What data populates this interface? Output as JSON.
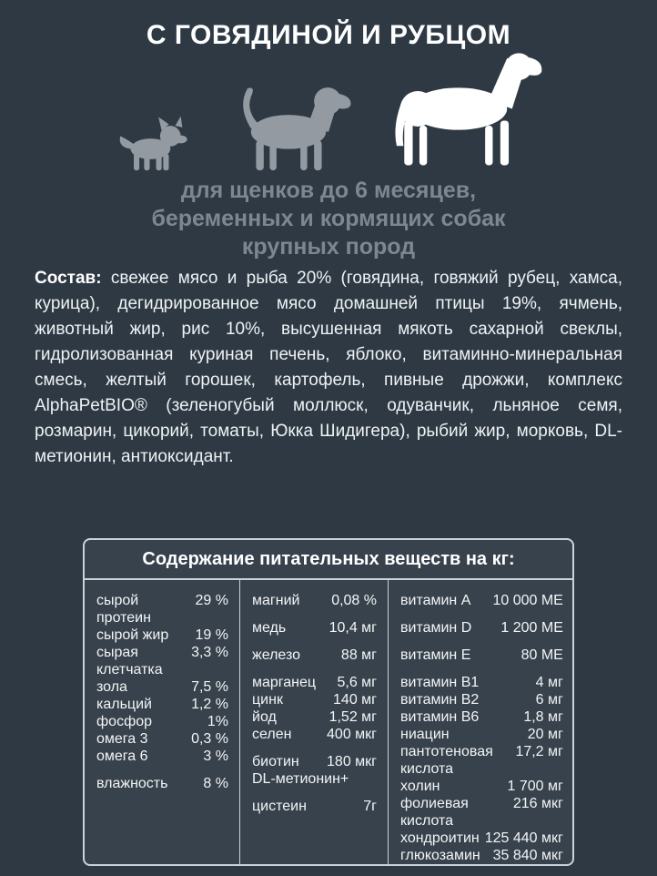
{
  "colors": {
    "background": "#2e3944",
    "panel_background": "#38424c",
    "border": "#ccd3d8",
    "text_primary": "#ffffff",
    "text_body": "#eef2f4",
    "text_muted": "#7d8790",
    "dog_gray": "#939aa1",
    "dog_white": "#ffffff"
  },
  "header": {
    "title": "С ГОВЯДИНОЙ И РУБЦОМ",
    "subtitle": "для щенков до 6 месяцев,\nбеременных и кормящих собак\nкрупных пород",
    "size_icons": [
      "small-dog",
      "medium-dog",
      "large-dog-highlighted"
    ]
  },
  "composition": {
    "label": "Состав:",
    "text": "свежее мясо и рыба 20% (говядина, говяжий рубец, хамса, курица), дегидрированное мясо домашней птицы 19%, ячмень, животный жир, рис 10%, высушенная мякоть сахарной свеклы, гидролизованная куриная печень, яблоко, витаминно-минеральная смесь, желтый горошек, картофель, пивные дрожжи, комплекс AlphaPetBIO® (зеленогубый моллюск, одуванчик, льняное семя, розмарин, цикорий, томаты, Юкка Шидигера), рыбий жир, морковь, DL-метионин, антиоксидант."
  },
  "table": {
    "title": "Содержание питательных веществ на кг:",
    "columns": [
      {
        "rows": [
          {
            "l": "сырой протеин",
            "v": "29 %"
          },
          {
            "l": "сырой жир",
            "v": "19 %"
          },
          {
            "l": "сырая клетчатка",
            "v": "3,3 %"
          },
          {
            "l": "зола",
            "v": "7,5 %"
          },
          {
            "l": "кальций",
            "v": "1,2 %"
          },
          {
            "l": "фосфор",
            "v": "1%"
          },
          {
            "l": "омега 3",
            "v": "0,3 %"
          },
          {
            "l": "омега 6",
            "v": "3 %"
          },
          {
            "l": "влажность",
            "v": "8 %",
            "gap": true
          }
        ]
      },
      {
        "rows": [
          {
            "l": "магний",
            "v": "0,08 %"
          },
          {
            "l": "медь",
            "v": "10,4 мг",
            "gap": true
          },
          {
            "l": "железо",
            "v": "88 мг",
            "gap": true
          },
          {
            "l": "марганец",
            "v": "5,6 мг",
            "gap": true
          },
          {
            "l": "цинк",
            "v": "140 мг"
          },
          {
            "l": "йод",
            "v": "1,52 мг"
          },
          {
            "l": "селен",
            "v": "400 мкг"
          },
          {
            "l": "биотин",
            "v": "180 мкг",
            "gap": true
          },
          {
            "l": "DL-метионин+",
            "v": ""
          },
          {
            "l": "цистеин",
            "v": "7г",
            "gap": true
          }
        ]
      },
      {
        "rows": [
          {
            "l": "витамин A",
            "v": "10 000 МЕ"
          },
          {
            "l": "витамин D",
            "v": "1 200 МЕ",
            "gap": true
          },
          {
            "l": "витамин E",
            "v": "80 МЕ",
            "gap": true
          },
          {
            "l": "витамин B1",
            "v": "4 мг",
            "gap": true
          },
          {
            "l": "витамин B2",
            "v": "6 мг"
          },
          {
            "l": "витамин B6",
            "v": "1,8 мг"
          },
          {
            "l": "ниацин",
            "v": "20 мг"
          },
          {
            "l": "пантотеновая кислота",
            "v": "17,2 мг"
          },
          {
            "l": "холин",
            "v": "1 700 мг"
          },
          {
            "l": "фолиевая кислота",
            "v": "216 мкг"
          },
          {
            "l": "хондроитин",
            "v": "125 440 мкг"
          },
          {
            "l": "глюкозамин",
            "v": "35 840 мкг"
          }
        ]
      }
    ]
  }
}
